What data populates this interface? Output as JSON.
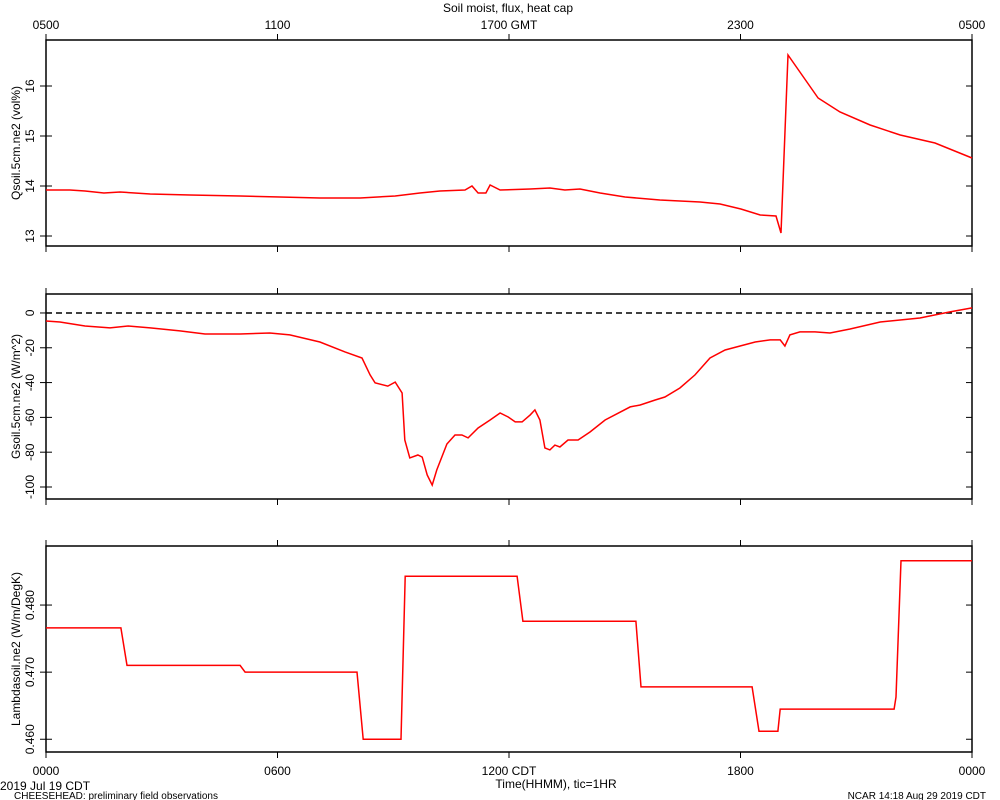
{
  "chart_data": [
    {
      "type": "line",
      "title": "Soil moist, flux, heat cap",
      "ylabel": "Qsoil.5cm.ne2 (vol%)",
      "color": "#ff0000",
      "xlim": [
        0,
        24
      ],
      "xticks": [
        0,
        6,
        12,
        18,
        24
      ],
      "x2ticks": [
        {
          "value": 0,
          "label": "0500"
        },
        {
          "value": 6,
          "label": "1100"
        },
        {
          "value": 12,
          "label": "1700 GMT"
        },
        {
          "value": 18,
          "label": "2300"
        },
        {
          "value": 24,
          "label": "0500"
        }
      ],
      "ylim": [
        12.8,
        16.92
      ],
      "yticks": [
        13,
        14,
        15,
        16
      ],
      "x": [
        0,
        0.62,
        1.01,
        1.5,
        1.92,
        2.7,
        3.73,
        5.03,
        6.06,
        7.1,
        8.14,
        9.05,
        9.69,
        10.21,
        10.86,
        11.04,
        11.2,
        11.4,
        11.51,
        11.77,
        12.55,
        13.06,
        13.45,
        13.84,
        14.36,
        15.01,
        15.91,
        16.95,
        17.47,
        18.01,
        18.51,
        18.92,
        19.05,
        19.23,
        19.54,
        20.01,
        20.58,
        21.36,
        22.14,
        23.04,
        24
      ],
      "values": [
        13.92,
        13.92,
        13.9,
        13.86,
        13.88,
        13.84,
        13.82,
        13.8,
        13.78,
        13.76,
        13.76,
        13.8,
        13.86,
        13.9,
        13.92,
        14.0,
        13.86,
        13.86,
        14.02,
        13.92,
        13.94,
        13.96,
        13.92,
        13.94,
        13.86,
        13.78,
        13.72,
        13.68,
        13.64,
        13.54,
        13.42,
        13.4,
        13.06,
        16.62,
        16.28,
        15.76,
        15.48,
        15.22,
        15.02,
        14.86,
        14.56
      ]
    },
    {
      "type": "line",
      "ylabel": "Gsoil.5cm.ne2 (W/m^2)",
      "color": "#ff0000",
      "reference_line": 0,
      "xlim": [
        0,
        24
      ],
      "xticks": [
        0,
        6,
        12,
        18,
        24
      ],
      "ylim": [
        -106.9,
        10.9
      ],
      "yticks": [
        0,
        -20,
        -40,
        -60,
        -80,
        -100
      ],
      "x": [
        0,
        0.36,
        1.01,
        1.66,
        2.13,
        2.7,
        3.47,
        4.12,
        5.03,
        5.8,
        6.32,
        7.1,
        7.75,
        8.19,
        8.4,
        8.53,
        8.86,
        9.05,
        9.23,
        9.3,
        9.43,
        9.64,
        9.75,
        9.88,
        10.01,
        10.13,
        10.39,
        10.6,
        10.78,
        10.94,
        11.2,
        11.51,
        11.77,
        11.98,
        12.16,
        12.34,
        12.55,
        12.67,
        12.8,
        12.93,
        13.06,
        13.19,
        13.32,
        13.53,
        13.79,
        14.1,
        14.49,
        15.14,
        15.4,
        15.79,
        16.04,
        16.43,
        16.82,
        17.21,
        17.6,
        17.99,
        18.38,
        18.77,
        19.03,
        19.15,
        19.28,
        19.54,
        19.93,
        20.32,
        20.84,
        21.62,
        22.65,
        23.43,
        24
      ],
      "values": [
        -4.6,
        -5.2,
        -7.5,
        -8.6,
        -7.5,
        -8.6,
        -10.3,
        -12.1,
        -12.1,
        -11.5,
        -12.6,
        -16.7,
        -22.4,
        -25.9,
        -35.6,
        -40.2,
        -42,
        -39.7,
        -46,
        -73,
        -83.3,
        -81.6,
        -82.8,
        -93.1,
        -98.9,
        -90.2,
        -75.3,
        -70.1,
        -70.1,
        -71.8,
        -66.1,
        -61.5,
        -57.5,
        -59.8,
        -62.6,
        -62.6,
        -58.6,
        -55.7,
        -61.5,
        -77.6,
        -78.7,
        -75.9,
        -77,
        -73,
        -73,
        -68.4,
        -61.5,
        -54,
        -52.9,
        -50,
        -48.3,
        -43.1,
        -35.6,
        -25.9,
        -21.3,
        -19,
        -16.7,
        -15.5,
        -15.5,
        -19,
        -12.6,
        -10.9,
        -10.9,
        -11.5,
        -9.2,
        -5.2,
        -2.9,
        0.6,
        2.9
      ]
    },
    {
      "type": "line",
      "ylabel": "Lambdasoil.ne2 (W/m/DegK)",
      "xlabel": "Time(HHMM), tic=1HR",
      "color": "#ff0000",
      "xlim": [
        0,
        24
      ],
      "xticks": [
        {
          "value": 0,
          "label": "0000"
        },
        {
          "value": 6,
          "label": "0600"
        },
        {
          "value": 12,
          "label": "1200 CDT"
        },
        {
          "value": 18,
          "label": "1800"
        },
        {
          "value": 24,
          "label": "0000"
        }
      ],
      "ylim": [
        0.4581,
        0.4888
      ],
      "yticks": [
        {
          "value": 0.46,
          "label": "0.460"
        },
        {
          "value": 0.47,
          "label": "0.470"
        },
        {
          "value": 0.48,
          "label": "0.480"
        }
      ],
      "x": [
        0,
        1.94,
        2.1,
        5.03,
        5.16,
        8.06,
        8.22,
        9.2,
        9.31,
        12.21,
        12.36,
        15.29,
        15.42,
        18.3,
        18.48,
        18.97,
        19.03,
        21.98,
        22.03,
        22.16,
        24
      ],
      "values": [
        0.4766,
        0.4766,
        0.471,
        0.471,
        0.47,
        0.47,
        0.46,
        0.46,
        0.4843,
        0.4843,
        0.4776,
        0.4776,
        0.4678,
        0.4678,
        0.4612,
        0.4612,
        0.4645,
        0.4645,
        0.4663,
        0.4866,
        0.4866
      ]
    }
  ],
  "footer": {
    "date": "2019 Jul 19 CDT",
    "note": "CHEESEHEAD: preliminary field observations",
    "stamp": "NCAR 14:18 Aug 29 2019 CDT"
  }
}
